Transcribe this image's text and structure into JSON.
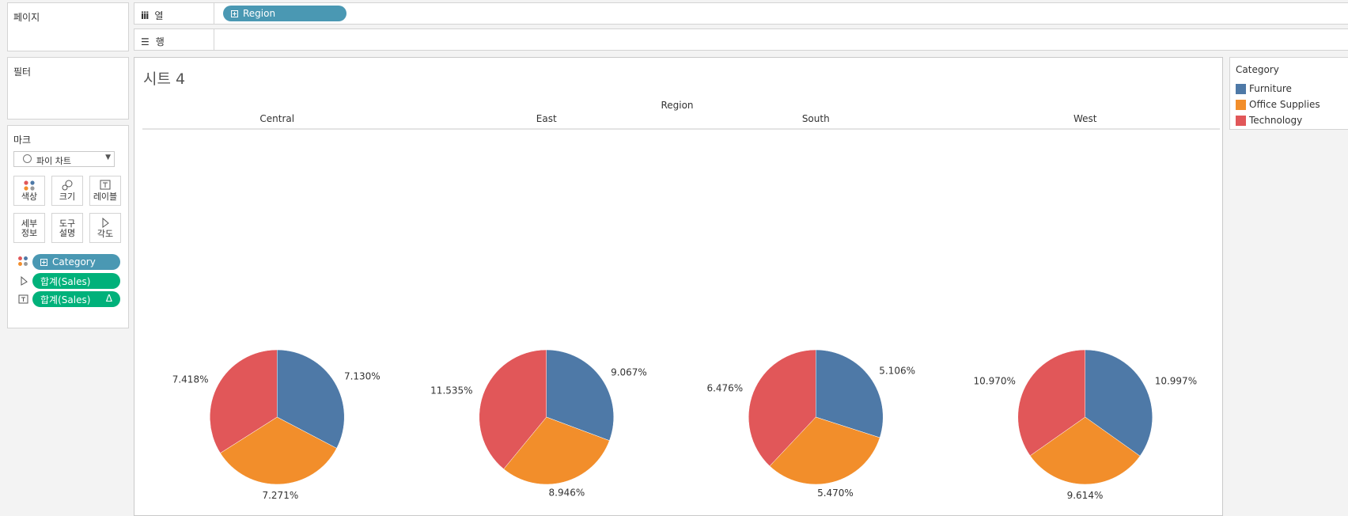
{
  "left_panels": {
    "pages_title": "페이지",
    "filters_title": "필터",
    "marks_title": "마크",
    "mark_type": "파이 차트",
    "mark_buttons": [
      {
        "label1": "색상",
        "label2": "",
        "icon": "color-dots-icon"
      },
      {
        "label1": "크기",
        "label2": "",
        "icon": "size-icon"
      },
      {
        "label1": "레이블",
        "label2": "",
        "icon": "label-icon"
      },
      {
        "label1": "세부",
        "label2": "정보",
        "icon": ""
      },
      {
        "label1": "도구",
        "label2": "설명",
        "icon": ""
      },
      {
        "label1": "각도",
        "label2": "",
        "icon": "angle-icon"
      }
    ],
    "mark_pills": [
      {
        "label": "Category",
        "icon": "color-dots-icon",
        "extra": ""
      },
      {
        "label": "합계(Sales)",
        "icon": "angle-icon",
        "extra": ""
      },
      {
        "label": "합계(Sales)",
        "icon": "label-icon",
        "extra": "Δ"
      }
    ]
  },
  "shelves": {
    "columns_label": "열",
    "columns_pill": "Region",
    "rows_label": "행"
  },
  "sheet": {
    "title": "시트 4",
    "header_title": "Region"
  },
  "legend": {
    "title": "Category",
    "items": [
      {
        "label": "Furniture",
        "color": "#4e79a7"
      },
      {
        "label": "Office Supplies",
        "color": "#f28e2b"
      },
      {
        "label": "Technology",
        "color": "#e15759"
      }
    ]
  },
  "chart_data": {
    "type": "pie",
    "panel_field": "Region",
    "panels": [
      "Central",
      "East",
      "South",
      "West"
    ],
    "series_field": "Category",
    "series": [
      "Furniture",
      "Office Supplies",
      "Technology"
    ],
    "values": [
      [
        7.13,
        7.271,
        7.418
      ],
      [
        9.067,
        8.946,
        11.535
      ],
      [
        5.106,
        5.47,
        6.476
      ],
      [
        10.997,
        9.614,
        10.97
      ]
    ],
    "labels": [
      [
        "7.130%",
        "7.271%",
        "7.418%"
      ],
      [
        "9.067%",
        "8.946%",
        "11.535%"
      ],
      [
        "5.106%",
        "5.470%",
        "6.476%"
      ],
      [
        "10.997%",
        "9.614%",
        "10.970%"
      ]
    ],
    "colors": [
      "#4e79a7",
      "#f28e2b",
      "#e15759"
    ],
    "legend_position": "right"
  }
}
